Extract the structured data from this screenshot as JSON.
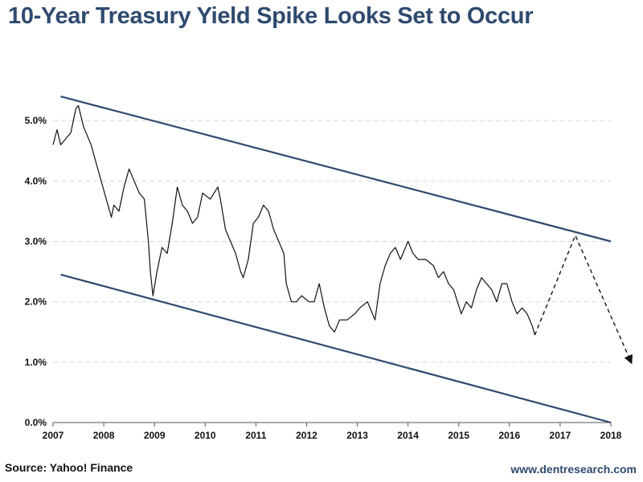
{
  "chart_data": {
    "type": "line",
    "title": "10-Year Treasury Yield Spike Looks Set to Occur",
    "xlabel": "",
    "ylabel": "",
    "x_ticks": [
      "2007",
      "2008",
      "2009",
      "2010",
      "2011",
      "2012",
      "2013",
      "2014",
      "2015",
      "2016",
      "2017",
      "2018"
    ],
    "xlim": [
      2007,
      2018
    ],
    "y_ticks": [
      "0.0%",
      "1.0%",
      "2.0%",
      "3.0%",
      "4.0%",
      "5.0%"
    ],
    "ylim": [
      0,
      6
    ],
    "grid": true,
    "series": [
      {
        "name": "10-Year Treasury Yield",
        "style": "solid",
        "color": "#111111",
        "points": [
          [
            2007.0,
            4.6
          ],
          [
            2007.08,
            4.85
          ],
          [
            2007.15,
            4.6
          ],
          [
            2007.25,
            4.7
          ],
          [
            2007.35,
            4.8
          ],
          [
            2007.45,
            5.2
          ],
          [
            2007.5,
            5.25
          ],
          [
            2007.6,
            4.9
          ],
          [
            2007.75,
            4.6
          ],
          [
            2007.85,
            4.3
          ],
          [
            2007.95,
            4.0
          ],
          [
            2008.05,
            3.7
          ],
          [
            2008.15,
            3.4
          ],
          [
            2008.2,
            3.6
          ],
          [
            2008.3,
            3.5
          ],
          [
            2008.4,
            3.9
          ],
          [
            2008.5,
            4.2
          ],
          [
            2008.6,
            4.0
          ],
          [
            2008.7,
            3.8
          ],
          [
            2008.8,
            3.7
          ],
          [
            2008.88,
            3.0
          ],
          [
            2008.92,
            2.5
          ],
          [
            2008.97,
            2.1
          ],
          [
            2009.05,
            2.5
          ],
          [
            2009.15,
            2.9
          ],
          [
            2009.25,
            2.8
          ],
          [
            2009.35,
            3.3
          ],
          [
            2009.45,
            3.9
          ],
          [
            2009.55,
            3.6
          ],
          [
            2009.65,
            3.5
          ],
          [
            2009.75,
            3.3
          ],
          [
            2009.85,
            3.4
          ],
          [
            2009.95,
            3.8
          ],
          [
            2010.1,
            3.7
          ],
          [
            2010.25,
            3.9
          ],
          [
            2010.3,
            3.7
          ],
          [
            2010.4,
            3.2
          ],
          [
            2010.5,
            3.0
          ],
          [
            2010.6,
            2.8
          ],
          [
            2010.7,
            2.5
          ],
          [
            2010.75,
            2.4
          ],
          [
            2010.85,
            2.7
          ],
          [
            2010.95,
            3.3
          ],
          [
            2011.05,
            3.4
          ],
          [
            2011.15,
            3.6
          ],
          [
            2011.25,
            3.5
          ],
          [
            2011.35,
            3.2
          ],
          [
            2011.45,
            3.0
          ],
          [
            2011.55,
            2.8
          ],
          [
            2011.6,
            2.3
          ],
          [
            2011.7,
            2.0
          ],
          [
            2011.8,
            2.0
          ],
          [
            2011.9,
            2.1
          ],
          [
            2012.05,
            2.0
          ],
          [
            2012.15,
            2.0
          ],
          [
            2012.25,
            2.3
          ],
          [
            2012.35,
            1.9
          ],
          [
            2012.45,
            1.6
          ],
          [
            2012.55,
            1.5
          ],
          [
            2012.65,
            1.7
          ],
          [
            2012.8,
            1.7
          ],
          [
            2012.95,
            1.8
          ],
          [
            2013.05,
            1.9
          ],
          [
            2013.2,
            2.0
          ],
          [
            2013.35,
            1.7
          ],
          [
            2013.45,
            2.3
          ],
          [
            2013.55,
            2.6
          ],
          [
            2013.65,
            2.8
          ],
          [
            2013.75,
            2.9
          ],
          [
            2013.85,
            2.7
          ],
          [
            2013.95,
            2.9
          ],
          [
            2014.0,
            3.0
          ],
          [
            2014.1,
            2.8
          ],
          [
            2014.2,
            2.7
          ],
          [
            2014.35,
            2.7
          ],
          [
            2014.5,
            2.6
          ],
          [
            2014.6,
            2.4
          ],
          [
            2014.7,
            2.5
          ],
          [
            2014.8,
            2.3
          ],
          [
            2014.9,
            2.2
          ],
          [
            2015.05,
            1.8
          ],
          [
            2015.15,
            2.0
          ],
          [
            2015.25,
            1.9
          ],
          [
            2015.35,
            2.2
          ],
          [
            2015.45,
            2.4
          ],
          [
            2015.55,
            2.3
          ],
          [
            2015.65,
            2.2
          ],
          [
            2015.75,
            2.0
          ],
          [
            2015.85,
            2.3
          ],
          [
            2015.95,
            2.3
          ],
          [
            2016.05,
            2.0
          ],
          [
            2016.15,
            1.8
          ],
          [
            2016.25,
            1.9
          ],
          [
            2016.35,
            1.8
          ],
          [
            2016.45,
            1.6
          ],
          [
            2016.5,
            1.45
          ]
        ]
      },
      {
        "name": "Projected path",
        "style": "dashed",
        "color": "#111111",
        "points": [
          [
            2016.5,
            1.45
          ],
          [
            2017.3,
            3.1
          ],
          [
            2018.4,
            1.0
          ]
        ]
      },
      {
        "name": "Upper channel line",
        "style": "solid",
        "color": "#2f4a6e",
        "points": [
          [
            2007.15,
            5.4
          ],
          [
            2018.0,
            3.0
          ]
        ]
      },
      {
        "name": "Lower channel line",
        "style": "solid",
        "color": "#2f4a6e",
        "points": [
          [
            2007.15,
            2.45
          ],
          [
            2018.0,
            0.0
          ]
        ]
      }
    ]
  },
  "footer": {
    "source": "Source: Yahoo! Finance",
    "website": "www.dentresearch.com"
  }
}
